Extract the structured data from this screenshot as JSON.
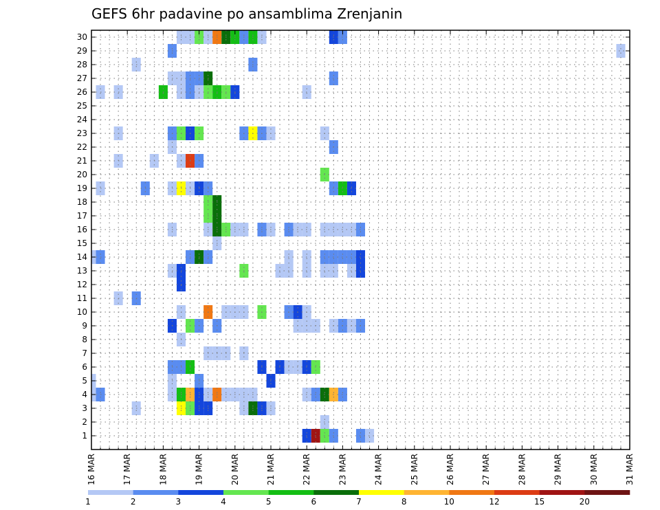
{
  "chart_data": {
    "type": "heatmap",
    "title": "GEFS 6hr padavine po ansamblima Zrenjanin",
    "xlabel": "",
    "ylabel": "",
    "y_ticks": [
      "1",
      "2",
      "3",
      "4",
      "5",
      "6",
      "7",
      "8",
      "9",
      "10",
      "11",
      "12",
      "13",
      "14",
      "15",
      "16",
      "17",
      "18",
      "19",
      "20",
      "21",
      "22",
      "23",
      "24",
      "25",
      "26",
      "27",
      "28",
      "29",
      "30"
    ],
    "x_ticks": [
      "16 MAR",
      "17 MAR",
      "18 MAR",
      "19 MAR",
      "20 MAR",
      "21 MAR",
      "22 MAR",
      "23 MAR",
      "24 MAR",
      "25 MAR",
      "26 MAR",
      "27 MAR",
      "28 MAR",
      "29 MAR",
      "30 MAR",
      "31 MAR"
    ],
    "xlim": [
      0,
      60
    ],
    "ylim": [
      0,
      30
    ],
    "grid": true,
    "time_step_hours": 6,
    "legend": {
      "placement": "bottom",
      "labels": [
        "1",
        "2",
        "3",
        "4",
        "5",
        "6",
        "7",
        "8",
        "10",
        "12",
        "15",
        "20"
      ],
      "colors": [
        "#b4c8f5",
        "#5a8cf0",
        "#1446dc",
        "#64e650",
        "#14be14",
        "#0a6e0a",
        "#ffff00",
        "#ffb432",
        "#f07814",
        "#dc3c14",
        "#a01414",
        "#6e1414"
      ]
    },
    "cells": [
      {
        "t": 10,
        "m": 30,
        "c": 0
      },
      {
        "t": 11,
        "m": 30,
        "c": 0
      },
      {
        "t": 12,
        "m": 30,
        "c": 3
      },
      {
        "t": 13,
        "m": 30,
        "c": 0
      },
      {
        "t": 14,
        "m": 30,
        "c": 8
      },
      {
        "t": 15,
        "m": 30,
        "c": 5
      },
      {
        "t": 16,
        "m": 30,
        "c": 4
      },
      {
        "t": 17,
        "m": 30,
        "c": 1
      },
      {
        "t": 18,
        "m": 30,
        "c": 4
      },
      {
        "t": 19,
        "m": 30,
        "c": 0
      },
      {
        "t": 27,
        "m": 30,
        "c": 2
      },
      {
        "t": 28,
        "m": 30,
        "c": 1
      },
      {
        "t": 9,
        "m": 29,
        "c": 1
      },
      {
        "t": 59,
        "m": 29,
        "c": 0
      },
      {
        "t": 5,
        "m": 28,
        "c": 0
      },
      {
        "t": 18,
        "m": 28,
        "c": 1
      },
      {
        "t": 9,
        "m": 27,
        "c": 0
      },
      {
        "t": 10,
        "m": 27,
        "c": 0
      },
      {
        "t": 11,
        "m": 27,
        "c": 1
      },
      {
        "t": 12,
        "m": 27,
        "c": 1
      },
      {
        "t": 13,
        "m": 27,
        "c": 5
      },
      {
        "t": 27,
        "m": 27,
        "c": 1
      },
      {
        "t": 1,
        "m": 26,
        "c": 0
      },
      {
        "t": 3,
        "m": 26,
        "c": 0
      },
      {
        "t": 8,
        "m": 26,
        "c": 4
      },
      {
        "t": 10,
        "m": 26,
        "c": 0
      },
      {
        "t": 11,
        "m": 26,
        "c": 1
      },
      {
        "t": 12,
        "m": 26,
        "c": 0
      },
      {
        "t": 13,
        "m": 26,
        "c": 3
      },
      {
        "t": 14,
        "m": 26,
        "c": 4
      },
      {
        "t": 15,
        "m": 26,
        "c": 3
      },
      {
        "t": 16,
        "m": 26,
        "c": 2
      },
      {
        "t": 24,
        "m": 26,
        "c": 0
      },
      {
        "t": 3,
        "m": 23,
        "c": 0
      },
      {
        "t": 9,
        "m": 23,
        "c": 1
      },
      {
        "t": 10,
        "m": 23,
        "c": 3
      },
      {
        "t": 11,
        "m": 23,
        "c": 2
      },
      {
        "t": 12,
        "m": 23,
        "c": 3
      },
      {
        "t": 17,
        "m": 23,
        "c": 1
      },
      {
        "t": 18,
        "m": 23,
        "c": 6
      },
      {
        "t": 19,
        "m": 23,
        "c": 1
      },
      {
        "t": 20,
        "m": 23,
        "c": 0
      },
      {
        "t": 26,
        "m": 23,
        "c": 0
      },
      {
        "t": 9,
        "m": 22,
        "c": 0
      },
      {
        "t": 27,
        "m": 22,
        "c": 1
      },
      {
        "t": 3,
        "m": 21,
        "c": 0
      },
      {
        "t": 7,
        "m": 21,
        "c": 0
      },
      {
        "t": 10,
        "m": 21,
        "c": 0
      },
      {
        "t": 11,
        "m": 21,
        "c": 9
      },
      {
        "t": 12,
        "m": 21,
        "c": 1
      },
      {
        "t": 26,
        "m": 20,
        "c": 3
      },
      {
        "t": 1,
        "m": 19,
        "c": 0
      },
      {
        "t": 6,
        "m": 19,
        "c": 1
      },
      {
        "t": 9,
        "m": 19,
        "c": 0
      },
      {
        "t": 10,
        "m": 19,
        "c": 6
      },
      {
        "t": 11,
        "m": 19,
        "c": 0
      },
      {
        "t": 12,
        "m": 19,
        "c": 2
      },
      {
        "t": 13,
        "m": 19,
        "c": 1
      },
      {
        "t": 27,
        "m": 19,
        "c": 1
      },
      {
        "t": 28,
        "m": 19,
        "c": 4
      },
      {
        "t": 29,
        "m": 19,
        "c": 2
      },
      {
        "t": 13,
        "m": 18,
        "c": 3
      },
      {
        "t": 14,
        "m": 18,
        "c": 5
      },
      {
        "t": 13,
        "m": 17,
        "c": 3
      },
      {
        "t": 14,
        "m": 17,
        "c": 5
      },
      {
        "t": 9,
        "m": 16,
        "c": 0
      },
      {
        "t": 13,
        "m": 16,
        "c": 0
      },
      {
        "t": 14,
        "m": 16,
        "c": 5
      },
      {
        "t": 15,
        "m": 16,
        "c": 3
      },
      {
        "t": 16,
        "m": 16,
        "c": 0
      },
      {
        "t": 17,
        "m": 16,
        "c": 0
      },
      {
        "t": 19,
        "m": 16,
        "c": 1
      },
      {
        "t": 20,
        "m": 16,
        "c": 0
      },
      {
        "t": 22,
        "m": 16,
        "c": 1
      },
      {
        "t": 23,
        "m": 16,
        "c": 0
      },
      {
        "t": 24,
        "m": 16,
        "c": 0
      },
      {
        "t": 26,
        "m": 16,
        "c": 0
      },
      {
        "t": 27,
        "m": 16,
        "c": 0
      },
      {
        "t": 28,
        "m": 16,
        "c": 0
      },
      {
        "t": 29,
        "m": 16,
        "c": 0
      },
      {
        "t": 30,
        "m": 16,
        "c": 1
      },
      {
        "t": 14,
        "m": 15,
        "c": 0
      },
      {
        "t": 0,
        "m": 14,
        "c": 0
      },
      {
        "t": 1,
        "m": 14,
        "c": 1
      },
      {
        "t": 11,
        "m": 14,
        "c": 1
      },
      {
        "t": 12,
        "m": 14,
        "c": 5
      },
      {
        "t": 13,
        "m": 14,
        "c": 1
      },
      {
        "t": 22,
        "m": 14,
        "c": 0
      },
      {
        "t": 24,
        "m": 14,
        "c": 0
      },
      {
        "t": 26,
        "m": 14,
        "c": 1
      },
      {
        "t": 27,
        "m": 14,
        "c": 1
      },
      {
        "t": 28,
        "m": 14,
        "c": 1
      },
      {
        "t": 29,
        "m": 14,
        "c": 1
      },
      {
        "t": 30,
        "m": 14,
        "c": 2
      },
      {
        "t": 9,
        "m": 13,
        "c": 0
      },
      {
        "t": 10,
        "m": 13,
        "c": 2
      },
      {
        "t": 17,
        "m": 13,
        "c": 3
      },
      {
        "t": 21,
        "m": 13,
        "c": 0
      },
      {
        "t": 22,
        "m": 13,
        "c": 0
      },
      {
        "t": 24,
        "m": 13,
        "c": 0
      },
      {
        "t": 26,
        "m": 13,
        "c": 0
      },
      {
        "t": 27,
        "m": 13,
        "c": 0
      },
      {
        "t": 29,
        "m": 13,
        "c": 0
      },
      {
        "t": 30,
        "m": 13,
        "c": 2
      },
      {
        "t": 10,
        "m": 12,
        "c": 2
      },
      {
        "t": 3,
        "m": 11,
        "c": 0
      },
      {
        "t": 5,
        "m": 11,
        "c": 1
      },
      {
        "t": 10,
        "m": 10,
        "c": 0
      },
      {
        "t": 13,
        "m": 10,
        "c": 8
      },
      {
        "t": 15,
        "m": 10,
        "c": 0
      },
      {
        "t": 16,
        "m": 10,
        "c": 0
      },
      {
        "t": 17,
        "m": 10,
        "c": 0
      },
      {
        "t": 19,
        "m": 10,
        "c": 3
      },
      {
        "t": 22,
        "m": 10,
        "c": 1
      },
      {
        "t": 23,
        "m": 10,
        "c": 2
      },
      {
        "t": 24,
        "m": 10,
        "c": 0
      },
      {
        "t": 9,
        "m": 9,
        "c": 2
      },
      {
        "t": 11,
        "m": 9,
        "c": 3
      },
      {
        "t": 12,
        "m": 9,
        "c": 1
      },
      {
        "t": 14,
        "m": 9,
        "c": 1
      },
      {
        "t": 23,
        "m": 9,
        "c": 0
      },
      {
        "t": 24,
        "m": 9,
        "c": 0
      },
      {
        "t": 25,
        "m": 9,
        "c": 0
      },
      {
        "t": 27,
        "m": 9,
        "c": 0
      },
      {
        "t": 28,
        "m": 9,
        "c": 1
      },
      {
        "t": 29,
        "m": 9,
        "c": 0
      },
      {
        "t": 30,
        "m": 9,
        "c": 1
      },
      {
        "t": 10,
        "m": 8,
        "c": 0
      },
      {
        "t": 13,
        "m": 7,
        "c": 0
      },
      {
        "t": 14,
        "m": 7,
        "c": 0
      },
      {
        "t": 15,
        "m": 7,
        "c": 0
      },
      {
        "t": 17,
        "m": 7,
        "c": 0
      },
      {
        "t": 9,
        "m": 6,
        "c": 1
      },
      {
        "t": 10,
        "m": 6,
        "c": 1
      },
      {
        "t": 11,
        "m": 6,
        "c": 4
      },
      {
        "t": 19,
        "m": 6,
        "c": 2
      },
      {
        "t": 21,
        "m": 6,
        "c": 2
      },
      {
        "t": 22,
        "m": 6,
        "c": 0
      },
      {
        "t": 23,
        "m": 6,
        "c": 0
      },
      {
        "t": 24,
        "m": 6,
        "c": 2
      },
      {
        "t": 25,
        "m": 6,
        "c": 3
      },
      {
        "t": 0,
        "m": 5,
        "c": 0
      },
      {
        "t": 9,
        "m": 5,
        "c": 0
      },
      {
        "t": 12,
        "m": 5,
        "c": 1
      },
      {
        "t": 20,
        "m": 5,
        "c": 2
      },
      {
        "t": 0,
        "m": 4,
        "c": 0
      },
      {
        "t": 1,
        "m": 4,
        "c": 1
      },
      {
        "t": 9,
        "m": 4,
        "c": 0
      },
      {
        "t": 10,
        "m": 4,
        "c": 4
      },
      {
        "t": 11,
        "m": 4,
        "c": 7
      },
      {
        "t": 12,
        "m": 4,
        "c": 2
      },
      {
        "t": 13,
        "m": 4,
        "c": 0
      },
      {
        "t": 14,
        "m": 4,
        "c": 8
      },
      {
        "t": 15,
        "m": 4,
        "c": 0
      },
      {
        "t": 16,
        "m": 4,
        "c": 0
      },
      {
        "t": 17,
        "m": 4,
        "c": 0
      },
      {
        "t": 18,
        "m": 4,
        "c": 0
      },
      {
        "t": 24,
        "m": 4,
        "c": 0
      },
      {
        "t": 25,
        "m": 4,
        "c": 1
      },
      {
        "t": 26,
        "m": 4,
        "c": 5
      },
      {
        "t": 27,
        "m": 4,
        "c": 7
      },
      {
        "t": 28,
        "m": 4,
        "c": 1
      },
      {
        "t": 5,
        "m": 3,
        "c": 0
      },
      {
        "t": 10,
        "m": 3,
        "c": 6
      },
      {
        "t": 11,
        "m": 3,
        "c": 3
      },
      {
        "t": 12,
        "m": 3,
        "c": 2
      },
      {
        "t": 13,
        "m": 3,
        "c": 2
      },
      {
        "t": 17,
        "m": 3,
        "c": 0
      },
      {
        "t": 18,
        "m": 3,
        "c": 5
      },
      {
        "t": 19,
        "m": 3,
        "c": 2
      },
      {
        "t": 20,
        "m": 3,
        "c": 0
      },
      {
        "t": 26,
        "m": 2,
        "c": 0
      },
      {
        "t": 24,
        "m": 1,
        "c": 2
      },
      {
        "t": 25,
        "m": 1,
        "c": 10
      },
      {
        "t": 26,
        "m": 1,
        "c": 3
      },
      {
        "t": 27,
        "m": 1,
        "c": 1
      },
      {
        "t": 30,
        "m": 1,
        "c": 1
      },
      {
        "t": 31,
        "m": 1,
        "c": 0
      }
    ]
  }
}
